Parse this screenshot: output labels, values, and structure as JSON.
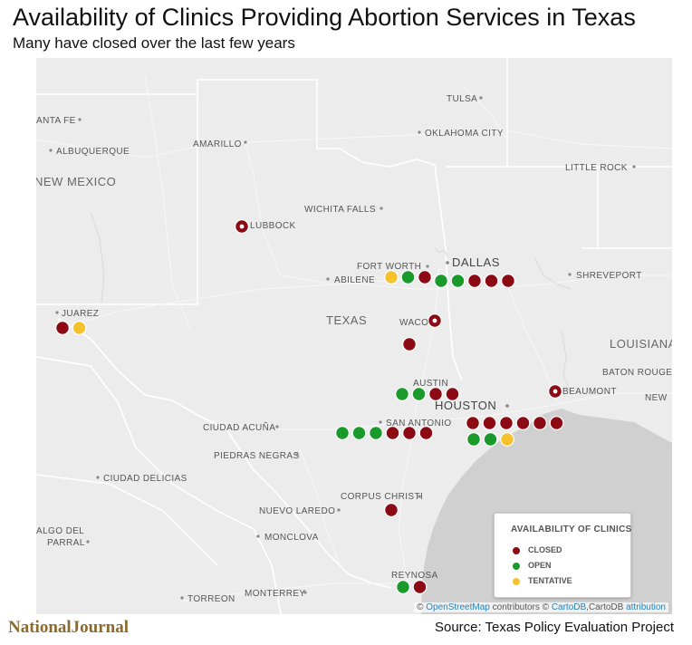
{
  "header": {
    "title": "Availability of Clinics Providing Abortion Services in Texas",
    "subtitle": "Many have closed over the last few years"
  },
  "map": {
    "region_labels": {
      "new_mexico": "NEW MEXICO",
      "texas": "TEXAS",
      "louisiana": "LOUISIANA"
    },
    "major_cities": {
      "dallas": "DALLAS",
      "houston": "HOUSTON"
    },
    "places": {
      "santa_fe": "ANTA FE",
      "albuquerque": "ALBUQUERQUE",
      "amarillo": "AMARILLO",
      "tulsa": "TULSA",
      "oklahoma_city": "OKLAHOMA CITY",
      "little_rock": "LITTLE ROCK",
      "wichita_falls": "WICHITA FALLS",
      "lubbock": "LUBBOCK",
      "fort_worth": "FORT WORTH",
      "abilene": "ABILENE",
      "shreveport": "SHREVEPORT",
      "juarez": "JUAREZ",
      "waco": "WACO",
      "austin": "AUSTIN",
      "baton_rouge": "BATON ROUGE",
      "beaumont": "BEAUMONT",
      "new_orleans_partial": "NEW",
      "ciudad_acuna": "CIUDAD ACUÑA",
      "san_antonio": "SAN ANTONIO",
      "piedras_negras": "PIEDRAS NEGRAS",
      "ciudad_delicias": "CIUDAD DELICIAS",
      "nuevo_laredo": "NUEVO LAREDO",
      "corpus_christi": "CORPUS CHRISTI",
      "hidalgo_del_parral_1": "ALGO DEL",
      "hidalgo_del_parral_2": "PARRAL",
      "monclova": "MONCLOVA",
      "reynosa": "REYNOSA",
      "torreon": "TORREON",
      "monterrey": "MONTERREY"
    },
    "clinic_groups": [
      {
        "place": "Lubbock",
        "statuses": [
          "closed"
        ],
        "marked": true
      },
      {
        "place": "Juarez",
        "statuses": [
          "closed",
          "tentative"
        ]
      },
      {
        "place": "Fort Worth",
        "statuses": [
          "tentative",
          "open",
          "closed"
        ]
      },
      {
        "place": "Dallas",
        "statuses": [
          "open",
          "open",
          "closed",
          "closed",
          "closed"
        ]
      },
      {
        "place": "Waco",
        "statuses": [
          "closed"
        ],
        "marked": true
      },
      {
        "place": "",
        "statuses": [
          "closed"
        ]
      },
      {
        "place": "Austin",
        "statuses": [
          "open",
          "open",
          "closed",
          "closed"
        ]
      },
      {
        "place": "Beaumont",
        "statuses": [
          "closed"
        ],
        "marked": true
      },
      {
        "place": "San Antonio",
        "statuses": [
          "open",
          "open",
          "open",
          "closed",
          "closed",
          "closed"
        ]
      },
      {
        "place": "Houston",
        "statuses": [
          "closed",
          "closed",
          "closed",
          "closed",
          "closed",
          "closed"
        ]
      },
      {
        "place": "Houston",
        "statuses": [
          "open",
          "open",
          "tentative"
        ]
      },
      {
        "place": "Corpus Christi",
        "statuses": [
          "closed"
        ]
      },
      {
        "place": "Reynosa",
        "statuses": [
          "open",
          "closed"
        ]
      }
    ],
    "status_colors": {
      "closed": "#8b0a14",
      "open": "#1a9a2a",
      "tentative": "#f5c22e"
    }
  },
  "legend": {
    "title": "AVAILABILITY OF CLINICS",
    "items": [
      {
        "label": "CLOSED",
        "color": "#8b0a14"
      },
      {
        "label": "OPEN",
        "color": "#1a9a2a"
      },
      {
        "label": "TENTATIVE",
        "color": "#f5c22e"
      }
    ]
  },
  "attribution": {
    "prefix": "© ",
    "osm": "OpenStreetMap",
    "mid": " contributors © ",
    "carto": "CartoDB",
    "mid2": ",CartoDB ",
    "attr": "attribution"
  },
  "footer": {
    "brand": "NationalJournal",
    "source": "Source: Texas Policy Evaluation Project"
  }
}
